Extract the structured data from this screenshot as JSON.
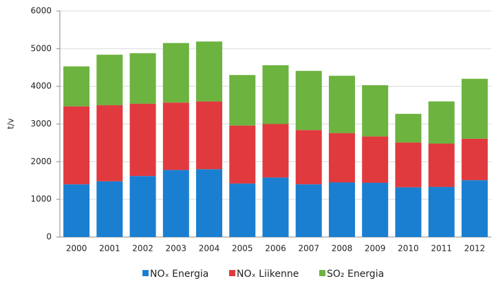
{
  "chart_data": {
    "type": "stacked_bar",
    "ylabel": "t/v",
    "categories": [
      "2000",
      "2001",
      "2002",
      "2003",
      "2004",
      "2005",
      "2006",
      "2007",
      "2008",
      "2009",
      "2010",
      "2011",
      "2012"
    ],
    "series": [
      {
        "name": "NOₓ Energia",
        "color": "#1a7fd0",
        "values": [
          1400,
          1480,
          1620,
          1780,
          1800,
          1420,
          1580,
          1400,
          1450,
          1440,
          1320,
          1330,
          1510
        ]
      },
      {
        "name": "NOₓ Liikenne",
        "color": "#e03a3e",
        "values": [
          2070,
          2020,
          1920,
          1790,
          1800,
          1540,
          1420,
          1440,
          1310,
          1230,
          1190,
          1150,
          1100
        ]
      },
      {
        "name": "SO₂ Energia",
        "color": "#6cb33f",
        "values": [
          1060,
          1340,
          1340,
          1580,
          1590,
          1340,
          1560,
          1570,
          1520,
          1360,
          760,
          1120,
          1590
        ]
      }
    ],
    "ylim": [
      0,
      6000
    ],
    "yticks": [
      0,
      1000,
      2000,
      3000,
      4000,
      5000,
      6000
    ],
    "grid": true,
    "legend": "bottom"
  }
}
